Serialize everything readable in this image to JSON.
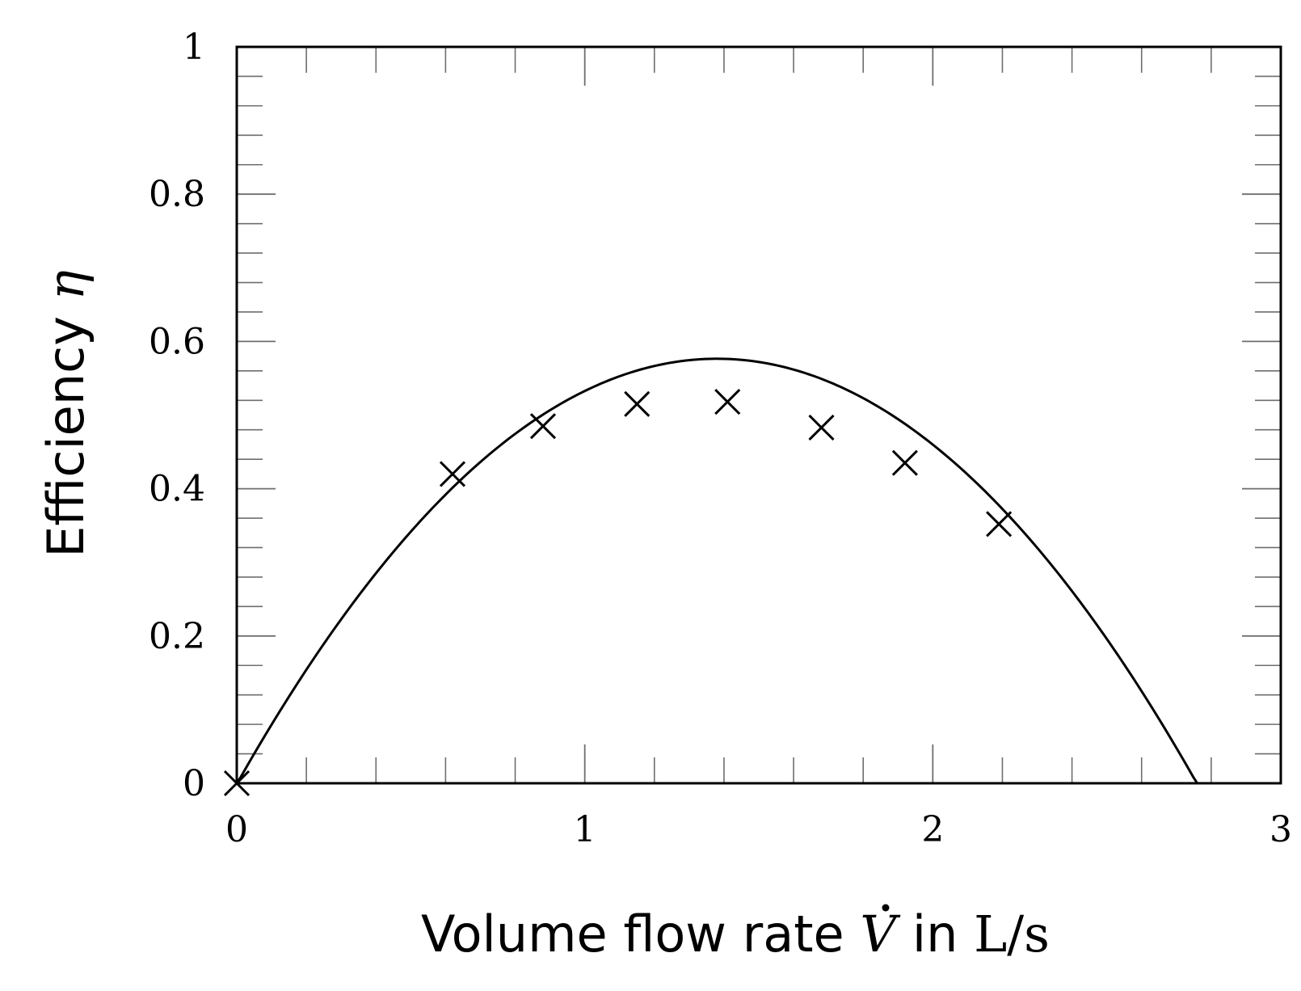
{
  "chart_data": {
    "type": "scatter",
    "xlabel_parts": {
      "text": "Volume flow rate ",
      "symbol": "V",
      "mid": " in ",
      "unit": "L/s"
    },
    "ylabel_parts": {
      "text": "Efficiency ",
      "symbol": "η"
    },
    "xlim": [
      0,
      3
    ],
    "ylim": [
      0,
      1
    ],
    "x_ticks": [
      0,
      1,
      2,
      3
    ],
    "x_tick_labels": [
      "0",
      "1",
      "2",
      "3"
    ],
    "y_ticks": [
      0,
      0.2,
      0.4,
      0.6,
      0.8,
      1
    ],
    "y_tick_labels": [
      "0",
      "0.2",
      "0.4",
      "0.6",
      "0.8",
      "1"
    ],
    "grid": false,
    "series": [
      {
        "kind": "measured",
        "marker": "x",
        "x": [
          0,
          0.62,
          0.88,
          1.15,
          1.41,
          1.68,
          1.92,
          2.19
        ],
        "y": [
          0,
          0.42,
          0.485,
          0.515,
          0.518,
          0.483,
          0.435,
          0.352
        ]
      },
      {
        "kind": "fit",
        "style": "solid",
        "function": "quadratic",
        "coefficients": {
          "a": -0.3033,
          "b": 0.8371,
          "c": -0.0011
        },
        "x_range": [
          0,
          2.76
        ]
      }
    ],
    "colors": {
      "line": "#000000",
      "frame": "#000000",
      "minor_tick": "#6e6e6e"
    }
  }
}
